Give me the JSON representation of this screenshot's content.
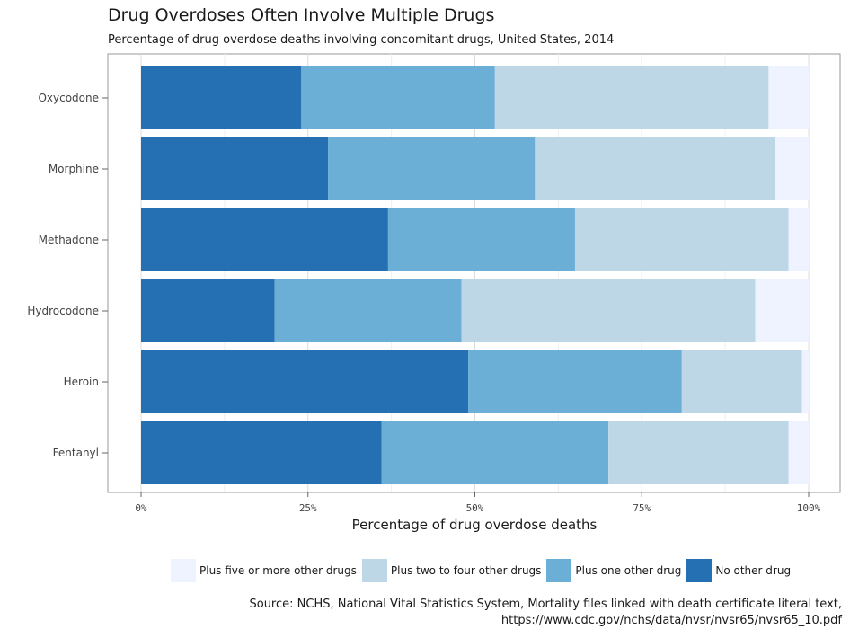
{
  "title": "Drug Overdoses Often Involve Multiple Drugs",
  "subtitle": "Percentage of drug overdose deaths involving concomitant drugs, United States, 2014",
  "chart_data": {
    "type": "bar",
    "orientation": "horizontal",
    "stacked": true,
    "categories": [
      "Oxycodone",
      "Morphine",
      "Methadone",
      "Hydrocodone",
      "Heroin",
      "Fentanyl"
    ],
    "series": [
      {
        "name": "No other drug",
        "color": "#2470b3",
        "values": [
          24,
          28,
          37,
          20,
          49,
          36
        ]
      },
      {
        "name": "Plus one other drug",
        "color": "#6baed6",
        "values": [
          29,
          31,
          28,
          28,
          32,
          34
        ]
      },
      {
        "name": "Plus two to four other drugs",
        "color": "#bdd7e7",
        "values": [
          41,
          36,
          32,
          44,
          18,
          27
        ]
      },
      {
        "name": "Plus five or more other drugs",
        "color": "#eff3ff",
        "values": [
          6,
          5,
          3,
          8,
          1,
          3
        ]
      }
    ],
    "xlabel": "Percentage of drug overdose deaths",
    "ylabel": "",
    "xlim": [
      0,
      100
    ],
    "xticks": [
      "0%",
      "25%",
      "50%",
      "75%",
      "100%"
    ],
    "grid": true,
    "legend_position": "bottom"
  },
  "legend": [
    {
      "label": "Plus five or more other drugs",
      "color": "#eff3ff"
    },
    {
      "label": "Plus two to four other drugs",
      "color": "#bdd7e7"
    },
    {
      "label": "Plus one other drug",
      "color": "#6baed6"
    },
    {
      "label": "No other drug",
      "color": "#2470b3"
    }
  ],
  "source": {
    "line1": "Source: NCHS, National Vital Statistics System, Mortality files linked with death certificate literal text,",
    "line2": "https://www.cdc.gov/nchs/data/nvsr/nvsr65/nvsr65_10.pdf"
  }
}
